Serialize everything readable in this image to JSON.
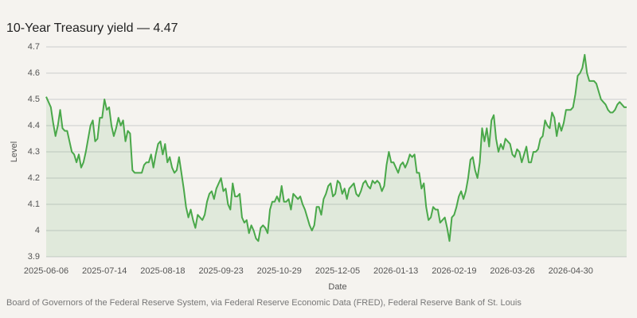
{
  "chart_data": {
    "type": "line",
    "title": "10-Year Treasury yield — 4.47",
    "x_label": "Date",
    "y_label": "Level",
    "source": "Board of Governors of the Federal Reserve System, via Federal Reserve Economic Data (FRED), Federal Reserve Bank of St. Louis",
    "color": "#4aa84a",
    "grid": true,
    "ylim": [
      3.9,
      4.7
    ],
    "yticks": [
      3.9,
      4.0,
      4.1,
      4.2,
      4.3,
      4.4,
      4.5,
      4.6,
      4.7
    ],
    "categories": [
      "2025-06-06",
      null,
      null,
      null,
      null,
      null,
      null,
      null,
      null,
      null,
      null,
      null,
      null,
      null,
      null,
      null,
      null,
      null,
      null,
      null,
      null,
      null,
      null,
      null,
      null,
      "2025-07-14",
      null,
      null,
      null,
      null,
      null,
      null,
      null,
      null,
      null,
      null,
      null,
      null,
      null,
      null,
      null,
      null,
      null,
      null,
      null,
      null,
      null,
      null,
      null,
      null,
      "2025-08-18",
      null,
      null,
      null,
      null,
      null,
      null,
      null,
      null,
      null,
      null,
      null,
      null,
      null,
      null,
      null,
      null,
      null,
      null,
      null,
      null,
      null,
      null,
      null,
      null,
      "2025-09-23",
      null,
      null,
      null,
      null,
      null,
      null,
      null,
      null,
      null,
      null,
      null,
      null,
      null,
      null,
      null,
      null,
      null,
      null,
      null,
      null,
      null,
      null,
      null,
      null,
      "2025-10-29",
      null,
      null,
      null,
      null,
      null,
      null,
      null,
      null,
      null,
      null,
      null,
      null,
      null,
      null,
      null,
      null,
      null,
      null,
      null,
      null,
      null,
      null,
      null,
      null,
      "2025-12-05",
      null,
      null,
      null,
      null,
      null,
      null,
      null,
      null,
      null,
      null,
      null,
      null,
      null,
      null,
      null,
      null,
      null,
      null,
      null,
      null,
      null,
      null,
      null,
      null,
      "2026-01-13",
      null,
      null,
      null,
      null,
      null,
      null,
      null,
      null,
      null,
      null,
      null,
      null,
      null,
      null,
      null,
      null,
      null,
      null,
      null,
      null,
      null,
      null,
      null,
      null,
      "2026-02-19",
      null,
      null,
      null,
      null,
      null,
      null,
      null,
      null,
      null,
      null,
      null,
      null,
      null,
      null,
      null,
      null,
      null,
      null,
      null,
      null,
      null,
      null,
      null,
      null,
      "2026-03-26",
      null,
      null,
      null,
      null,
      null,
      null,
      null,
      null,
      null,
      null,
      null,
      null,
      null,
      null,
      null,
      null,
      null,
      null,
      null,
      null,
      null,
      null,
      null,
      null,
      "2026-04-30",
      null,
      null,
      null,
      null,
      null,
      null,
      null,
      null,
      null,
      null,
      null,
      null,
      null,
      null,
      null,
      null,
      null,
      null,
      null,
      null,
      null,
      null,
      null,
      null
    ],
    "values": [
      4.51,
      4.49,
      4.47,
      4.41,
      4.36,
      4.4,
      4.46,
      4.39,
      4.38,
      4.38,
      4.34,
      4.3,
      4.29,
      4.26,
      4.29,
      4.24,
      4.26,
      4.3,
      4.35,
      4.4,
      4.42,
      4.34,
      4.35,
      4.43,
      4.43,
      4.5,
      4.46,
      4.47,
      4.4,
      4.36,
      4.39,
      4.43,
      4.4,
      4.42,
      4.34,
      4.38,
      4.37,
      4.23,
      4.22,
      4.22,
      4.22,
      4.22,
      4.25,
      4.26,
      4.26,
      4.29,
      4.24,
      4.29,
      4.33,
      4.34,
      4.29,
      4.33,
      4.26,
      4.28,
      4.24,
      4.22,
      4.23,
      4.28,
      4.22,
      4.16,
      4.09,
      4.05,
      4.08,
      4.04,
      4.01,
      4.06,
      4.05,
      4.04,
      4.06,
      4.11,
      4.14,
      4.15,
      4.12,
      4.16,
      4.18,
      4.2,
      4.15,
      4.16,
      4.1,
      4.08,
      4.18,
      4.13,
      4.13,
      4.14,
      4.05,
      4.03,
      4.04,
      3.99,
      4.02,
      4.0,
      3.97,
      3.96,
      4.01,
      4.02,
      4.01,
      3.99,
      4.08,
      4.11,
      4.11,
      4.13,
      4.11,
      4.17,
      4.11,
      4.11,
      4.12,
      4.08,
      4.14,
      4.13,
      4.12,
      4.13,
      4.1,
      4.08,
      4.05,
      4.02,
      4.0,
      4.02,
      4.09,
      4.09,
      4.06,
      4.12,
      4.14,
      4.17,
      4.18,
      4.13,
      4.14,
      4.19,
      4.18,
      4.14,
      4.16,
      4.12,
      4.16,
      4.17,
      4.18,
      4.14,
      4.13,
      4.15,
      4.18,
      4.19,
      4.17,
      4.16,
      4.19,
      4.18,
      4.19,
      4.18,
      4.15,
      4.17,
      4.25,
      4.3,
      4.26,
      4.26,
      4.24,
      4.22,
      4.25,
      4.26,
      4.24,
      4.26,
      4.29,
      4.28,
      4.29,
      4.22,
      4.22,
      4.16,
      4.18,
      4.09,
      4.04,
      4.05,
      4.09,
      4.08,
      4.08,
      4.03,
      4.04,
      4.05,
      4.01,
      3.96,
      4.05,
      4.06,
      4.09,
      4.13,
      4.15,
      4.12,
      4.15,
      4.2,
      4.27,
      4.28,
      4.23,
      4.2,
      4.26,
      4.39,
      4.34,
      4.39,
      4.32,
      4.42,
      4.44,
      4.35,
      4.3,
      4.33,
      4.31,
      4.35,
      4.34,
      4.33,
      4.29,
      4.28,
      4.31,
      4.3,
      4.26,
      4.29,
      4.32,
      4.26,
      4.26,
      4.3,
      4.3,
      4.31,
      4.35,
      4.36,
      4.42,
      4.4,
      4.39,
      4.45,
      4.43,
      4.36,
      4.41,
      4.38,
      4.41,
      4.46,
      4.46,
      4.46,
      4.47,
      4.52,
      4.59,
      4.6,
      4.62,
      4.67,
      4.6,
      4.57,
      4.57,
      4.57,
      4.56,
      4.53,
      4.5,
      4.49,
      4.48,
      4.46,
      4.45,
      4.45,
      4.46,
      4.48,
      4.49,
      4.48,
      4.47,
      4.47
    ]
  }
}
